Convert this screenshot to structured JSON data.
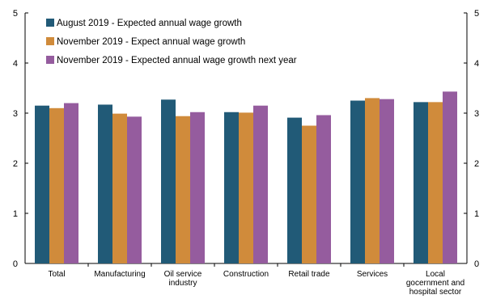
{
  "chart_data": {
    "type": "bar",
    "categories": [
      [
        "Total"
      ],
      [
        "Manufacturing"
      ],
      [
        "Oil service",
        "industry"
      ],
      [
        "Construction"
      ],
      [
        "Retail trade"
      ],
      [
        "Services"
      ],
      [
        "Local",
        "gocernment and",
        "hospital sector"
      ]
    ],
    "series": [
      {
        "name": "August 2019 - Expected annual wage growth",
        "color": "#215a77",
        "values": [
          3.15,
          3.17,
          3.27,
          3.02,
          2.91,
          3.25,
          3.22
        ]
      },
      {
        "name": "November 2019 - Expect annual wage growth",
        "color": "#d08b3b",
        "values": [
          3.1,
          2.99,
          2.94,
          3.01,
          2.75,
          3.3,
          3.22
        ]
      },
      {
        "name": "November 2019 - Expected annual wage growth next year",
        "color": "#955c9e",
        "values": [
          3.2,
          2.93,
          3.02,
          3.15,
          2.96,
          3.28,
          3.43
        ]
      }
    ],
    "ylim": [
      0,
      5
    ],
    "yticks": [
      "0",
      "1",
      "2",
      "3",
      "4",
      "5"
    ],
    "grid": false,
    "legend_position": "top-left",
    "title": "",
    "xlabel": "",
    "ylabel": ""
  }
}
